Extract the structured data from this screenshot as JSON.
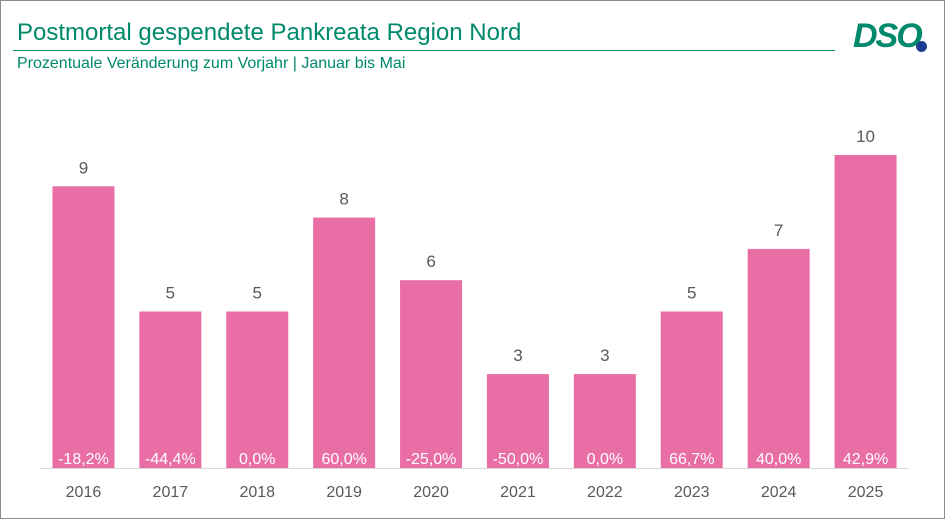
{
  "header": {
    "title": "Postmortal gespendete Pankreata Region Nord",
    "subtitle": "Prozentuale Veränderung zum Vorjahr | Januar bis Mai",
    "logo_text": "DSO"
  },
  "chart_data": {
    "type": "bar",
    "title": "Postmortal gespendete Pankreata Region Nord",
    "subtitle": "Prozentuale Veränderung zum Vorjahr | Januar bis Mai",
    "categories": [
      "2016",
      "2017",
      "2018",
      "2019",
      "2020",
      "2021",
      "2022",
      "2023",
      "2024",
      "2025"
    ],
    "series": [
      {
        "values": [
          9,
          5,
          5,
          8,
          6,
          3,
          3,
          5,
          7,
          10
        ],
        "change_labels": [
          "-18,2%",
          "-44,4%",
          "0,0%",
          "60,0%",
          "-25,0%",
          "-50,0%",
          "0,0%",
          "66,7%",
          "40,0%",
          "42,9%"
        ]
      }
    ],
    "ylim": [
      0,
      10
    ],
    "grid": false,
    "legend": false,
    "colors": {
      "bar": "#ea6ea6",
      "value_label": "#595959",
      "change_label": "#ffffff",
      "tick_label": "#595959",
      "axis": "#d9d9d9",
      "brand": "#00896b",
      "logo_dot": "#1b3f8f"
    }
  }
}
